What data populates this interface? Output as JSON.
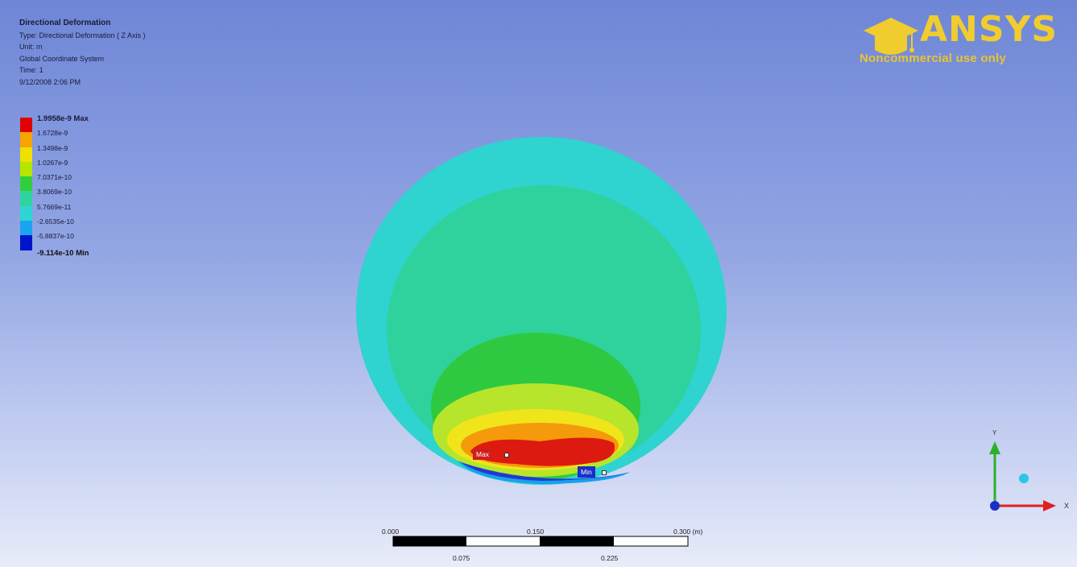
{
  "result_info": {
    "title": "Directional Deformation",
    "type": "Type: Directional Deformation ( Z Axis )",
    "unit": "Unit: m",
    "coord_system": "Global Coordinate System",
    "time": "Time: 1",
    "date": "9/12/2008 2:06 PM"
  },
  "legend": {
    "max_label": "1.9958e-9 Max",
    "labels": [
      "1.6728e-9",
      "1.3498e-9",
      "1.0267e-9",
      "7.0371e-10",
      "3.8069e-10",
      "5.7669e-11",
      "-2.6535e-10",
      "-5.8837e-10"
    ],
    "min_label": "-9.114e-10 Min",
    "colors": [
      "#e00000",
      "#f5a400",
      "#f0e000",
      "#b4e600",
      "#2fcf3c",
      "#2fd3a0",
      "#2fd4d4",
      "#1aa3ef",
      "#0014cc"
    ]
  },
  "logo": {
    "brand": "ANSYS",
    "subtitle": "Noncommercial use only",
    "accent_color": "#f0cc2e"
  },
  "probes": {
    "max": "Max",
    "min": "Min"
  },
  "scale_bar": {
    "top_labels": [
      "0.000",
      "0.150",
      "0.300 (m)"
    ],
    "bottom_labels": [
      "0.075",
      "0.225"
    ]
  },
  "triad": {
    "x_label": "X",
    "y_label": "Y"
  }
}
